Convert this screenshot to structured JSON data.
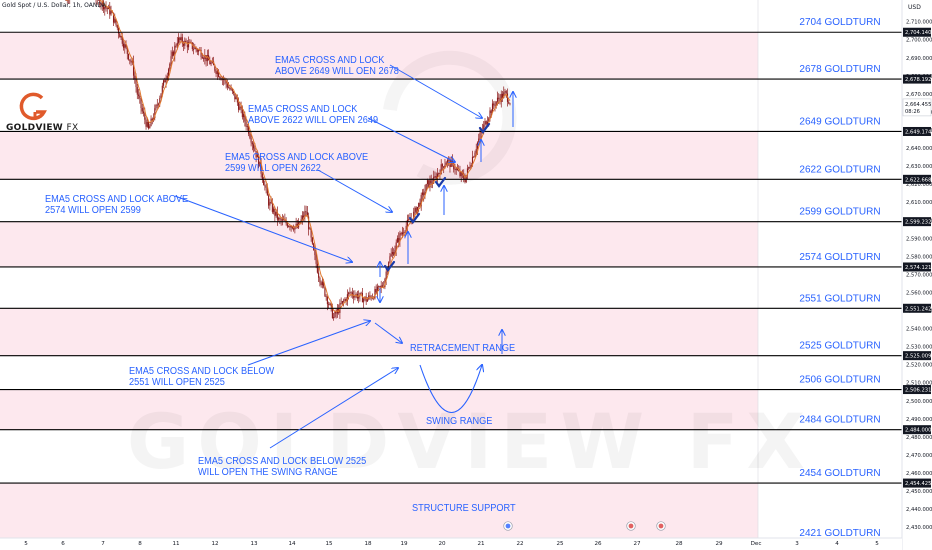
{
  "header": {
    "symbol_info": "Gold Spot / U.S. Dollar, 1h, OANDA",
    "currency": "USD"
  },
  "logo": {
    "brand": "GOLDVIEW",
    "suffix": "FX",
    "watermark": "GOLDVIEW FX"
  },
  "colors": {
    "zone_fill": "#fde8ee",
    "candle": "#8b1a1a",
    "ema": "#e07a30",
    "annotation": "#2962ff",
    "level_line": "#000000"
  },
  "chart_data": {
    "type": "candlestick",
    "ylim": [
      2424,
      2722
    ],
    "y_ticks": [
      2430,
      2440,
      2450,
      2460,
      2470,
      2480,
      2490,
      2500,
      2510,
      2520,
      2530,
      2540,
      2550,
      2560,
      2570,
      2580,
      2590,
      2600,
      2610,
      2620,
      2630,
      2640,
      2650,
      2660,
      2670,
      2680,
      2690,
      2700,
      2710,
      2720
    ],
    "x_ticks": [
      "5",
      "6",
      "7",
      "8",
      "11",
      "12",
      "13",
      "14",
      "15",
      "18",
      "19",
      "20",
      "21",
      "22",
      "25",
      "26",
      "27",
      "28",
      "29",
      "Dec",
      "3",
      "4",
      "5"
    ],
    "current_price": {
      "label": "2,664.455",
      "countdown": "08:26",
      "value": 2664.455
    },
    "levels": [
      {
        "value": 2704.14,
        "price_label": "2,704.140",
        "name": "2704 GOLDTURN"
      },
      {
        "value": 2678.192,
        "price_label": "2,678.192",
        "name": "2678 GOLDTURN"
      },
      {
        "value": 2649.174,
        "price_label": "2,649.174",
        "name": "2649 GOLDTURN"
      },
      {
        "value": 2622.668,
        "price_label": "2,622.668",
        "name": "2622 GOLDTURN"
      },
      {
        "value": 2599.232,
        "price_label": "2,599.232",
        "name": "2599 GOLDTURN"
      },
      {
        "value": 2574.121,
        "price_label": "2,574.121",
        "name": "2574 GOLDTURN"
      },
      {
        "value": 2551.242,
        "price_label": "2,551.242",
        "name": "2551 GOLDTURN"
      },
      {
        "value": 2525.009,
        "price_label": "2,525.009",
        "name": "2525 GOLDTURN"
      },
      {
        "value": 2506.231,
        "price_label": "2,506.231",
        "name": "2506 GOLDTURN"
      },
      {
        "value": 2484.0,
        "price_label": "2,484.000",
        "name": "2484 GOLDTURN"
      },
      {
        "value": 2454.425,
        "price_label": "2,454.425",
        "name": "2454 GOLDTURN"
      },
      {
        "value": 2421,
        "price_label": "",
        "name": "2421 GOLDTURN"
      }
    ],
    "zones": [
      [
        2678.192,
        2704.14
      ],
      [
        2622.668,
        2649.174
      ],
      [
        2574.121,
        2599.232
      ],
      [
        2525.009,
        2551.242
      ],
      [
        2484.0,
        2506.231
      ],
      [
        2424,
        2454.425
      ]
    ],
    "price_path": [
      [
        0,
        2722
      ],
      [
        10,
        2735
      ],
      [
        22,
        2725
      ],
      [
        36,
        2715
      ],
      [
        46,
        2698
      ],
      [
        53,
        2686
      ],
      [
        57,
        2670
      ],
      [
        61,
        2660
      ],
      [
        66,
        2650
      ],
      [
        71,
        2660
      ],
      [
        80,
        2680
      ],
      [
        89,
        2700
      ],
      [
        99,
        2697
      ],
      [
        108,
        2693
      ],
      [
        118,
        2685
      ],
      [
        127,
        2677
      ],
      [
        136,
        2667
      ],
      [
        146,
        2650
      ],
      [
        155,
        2630
      ],
      [
        162,
        2610
      ],
      [
        170,
        2600
      ],
      [
        178,
        2598
      ],
      [
        185,
        2596
      ],
      [
        192,
        2605
      ],
      [
        197,
        2585
      ],
      [
        202,
        2570
      ],
      [
        208,
        2558
      ],
      [
        214,
        2546
      ],
      [
        220,
        2553
      ],
      [
        227,
        2560
      ],
      [
        234,
        2558
      ],
      [
        240,
        2556
      ],
      [
        246,
        2559
      ],
      [
        251,
        2562
      ],
      [
        254,
        2565
      ],
      [
        258,
        2578
      ],
      [
        262,
        2583
      ],
      [
        266,
        2590
      ],
      [
        271,
        2596
      ],
      [
        277,
        2602
      ],
      [
        283,
        2610
      ],
      [
        289,
        2620
      ],
      [
        294,
        2622
      ],
      [
        299,
        2628
      ],
      [
        304,
        2633
      ],
      [
        310,
        2630
      ],
      [
        315,
        2625
      ],
      [
        319,
        2623
      ],
      [
        324,
        2633
      ],
      [
        329,
        2643
      ],
      [
        334,
        2652
      ],
      [
        339,
        2660
      ],
      [
        343,
        2665
      ],
      [
        347,
        2668
      ],
      [
        351,
        2670
      ],
      [
        355,
        2666
      ]
    ]
  },
  "annotations": {
    "a1": "EMA5 CROSS AND LOCK\nABOVE 2649 WILL OEN 2678",
    "a2": "EMA5 CROSS AND LOCK\nABOVE 2622 WILL OPEN 2649",
    "a3": "EMA5 CROSS AND LOCK ABOVE\n2599 WILL OPEN 2622",
    "a4": "EMA5 CROSS AND LOCK ABOVE\n2574 WILL OPEN 2599",
    "a5": "RETRACEMENT RANGE",
    "a6": "EMA5 CROSS AND LOCK BELOW\n2551 WILL OPEN 2525",
    "a7": "SWING RANGE",
    "a8": "EMA5 CROSS AND LOCK BELOW 2525\nWILL OPEN THE SWING RANGE",
    "a9": "STRUCTURE SUPPORT"
  }
}
